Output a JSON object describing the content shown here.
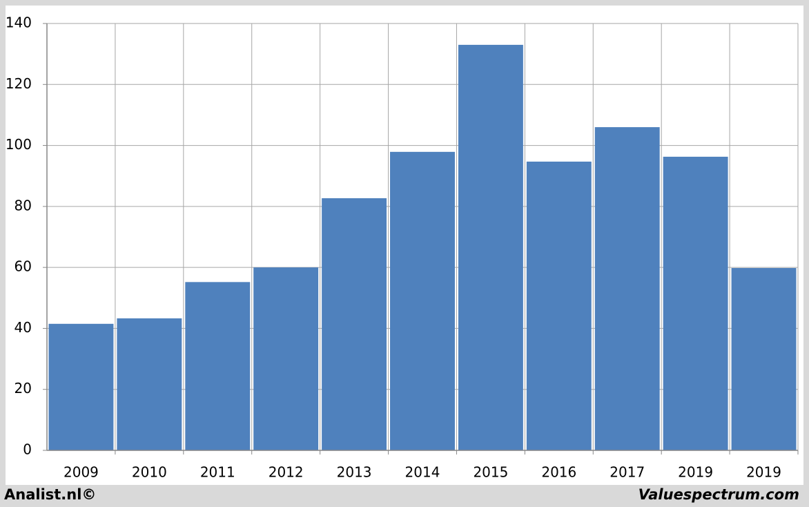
{
  "chart_data": {
    "type": "bar",
    "categories": [
      "2009",
      "2010",
      "2011",
      "2012",
      "2013",
      "2014",
      "2015",
      "2016",
      "2017",
      "2019",
      "2019"
    ],
    "values": [
      41.5,
      43.3,
      55.2,
      60,
      82.7,
      97.9,
      133,
      94.7,
      106,
      96.3,
      59.8
    ],
    "color": "#4f81bd",
    "ylim": [
      0,
      140
    ],
    "yticks": [
      0,
      20,
      40,
      60,
      80,
      100,
      120,
      140
    ],
    "grid": true,
    "footer_left": "Analist.nl©",
    "footer_right": "Valuespectrum.com"
  }
}
